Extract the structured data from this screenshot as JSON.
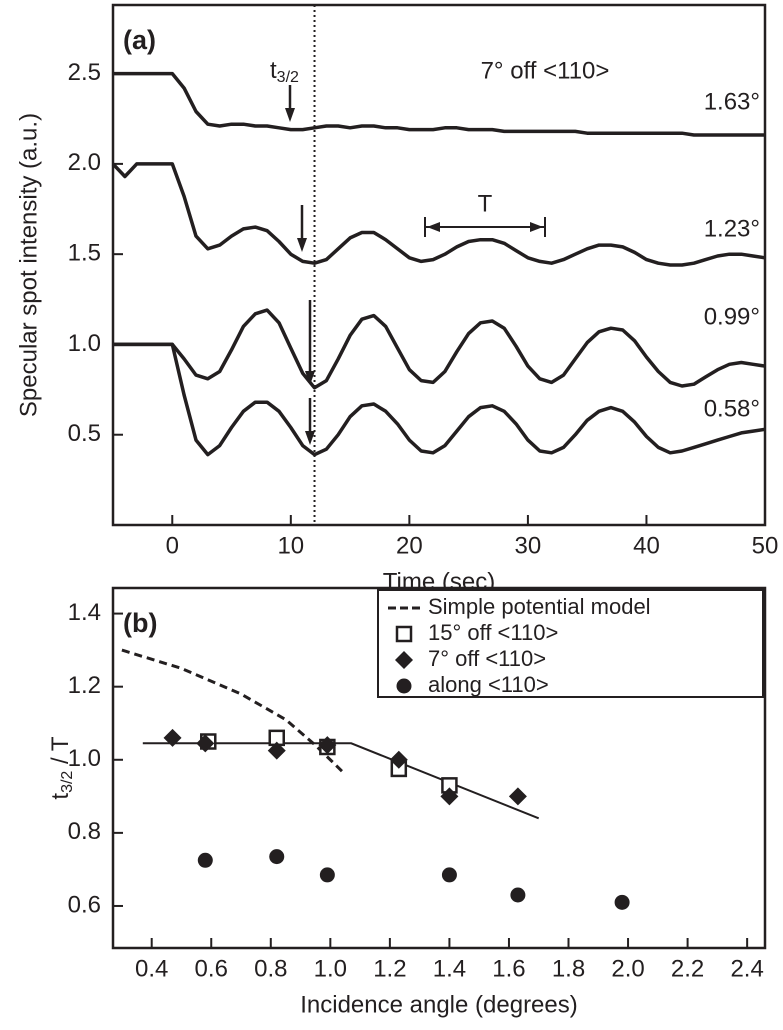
{
  "chart_data": [
    {
      "type": "line",
      "panel_label": "(a)",
      "xlabel": "Time (sec)",
      "ylabel": "Specular spot intensity (a.u.)",
      "xlim": [
        -5,
        50
      ],
      "ylim": [
        0,
        2.88
      ],
      "xticks": [
        0,
        10,
        20,
        30,
        40,
        50
      ],
      "yticks": [
        0.5,
        {
          "value": 1,
          "label": "1.0"
        },
        1.5,
        {
          "value": 2,
          "label": "2.0"
        },
        2.5
      ],
      "x": [
        -5,
        -4,
        -3,
        -2,
        -1,
        0,
        1,
        2,
        3,
        4,
        5,
        6,
        7,
        8,
        9,
        10,
        11,
        12,
        13,
        14,
        15,
        16,
        17,
        18,
        19,
        20,
        21,
        22,
        23,
        24,
        25,
        26,
        27,
        28,
        29,
        30,
        31,
        32,
        33,
        34,
        35,
        36,
        37,
        38,
        39,
        40,
        41,
        42,
        43,
        44,
        45,
        46,
        47,
        48,
        49,
        50
      ],
      "series": [
        {
          "name": "1.63°",
          "color": "#231f20",
          "values": [
            2.5,
            2.5,
            2.5,
            2.5,
            2.5,
            2.5,
            2.42,
            2.29,
            2.22,
            2.21,
            2.22,
            2.22,
            2.21,
            2.21,
            2.2,
            2.19,
            2.19,
            2.2,
            2.21,
            2.21,
            2.2,
            2.21,
            2.21,
            2.2,
            2.2,
            2.19,
            2.19,
            2.19,
            2.2,
            2.2,
            2.19,
            2.19,
            2.19,
            2.18,
            2.18,
            2.18,
            2.18,
            2.18,
            2.18,
            2.18,
            2.17,
            2.17,
            2.17,
            2.17,
            2.17,
            2.17,
            2.17,
            2.17,
            2.17,
            2.16,
            2.16,
            2.16,
            2.16,
            2.16,
            2.16,
            2.16
          ]
        },
        {
          "name": "1.23°",
          "color": "#231f20",
          "values": [
            2.0,
            1.93,
            2.0,
            2.0,
            2.0,
            2.0,
            1.82,
            1.6,
            1.53,
            1.55,
            1.6,
            1.64,
            1.65,
            1.63,
            1.57,
            1.5,
            1.46,
            1.45,
            1.47,
            1.53,
            1.59,
            1.62,
            1.62,
            1.58,
            1.53,
            1.48,
            1.46,
            1.47,
            1.5,
            1.54,
            1.57,
            1.58,
            1.58,
            1.56,
            1.52,
            1.48,
            1.46,
            1.45,
            1.47,
            1.5,
            1.53,
            1.55,
            1.55,
            1.54,
            1.51,
            1.47,
            1.45,
            1.44,
            1.44,
            1.45,
            1.47,
            1.49,
            1.5,
            1.5,
            1.49,
            1.48
          ]
        },
        {
          "name": "0.99°",
          "color": "#231f20",
          "values": [
            1.0,
            1.0,
            1.0,
            1.0,
            1.0,
            1.0,
            0.92,
            0.83,
            0.81,
            0.85,
            0.97,
            1.1,
            1.17,
            1.19,
            1.12,
            0.98,
            0.84,
            0.76,
            0.8,
            0.92,
            1.05,
            1.14,
            1.16,
            1.1,
            0.98,
            0.86,
            0.8,
            0.79,
            0.85,
            0.96,
            1.06,
            1.12,
            1.13,
            1.09,
            0.99,
            0.88,
            0.81,
            0.79,
            0.83,
            0.92,
            1.01,
            1.07,
            1.09,
            1.08,
            1.02,
            0.93,
            0.85,
            0.79,
            0.77,
            0.78,
            0.82,
            0.86,
            0.89,
            0.9,
            0.89,
            0.88
          ]
        },
        {
          "name": "0.58°",
          "color": "#231f20",
          "values": [
            1.0,
            1.0,
            1.0,
            1.0,
            1.0,
            1.0,
            0.72,
            0.47,
            0.39,
            0.44,
            0.54,
            0.63,
            0.68,
            0.68,
            0.63,
            0.54,
            0.44,
            0.39,
            0.42,
            0.5,
            0.6,
            0.66,
            0.67,
            0.63,
            0.56,
            0.47,
            0.41,
            0.4,
            0.44,
            0.52,
            0.6,
            0.65,
            0.66,
            0.63,
            0.56,
            0.47,
            0.41,
            0.4,
            0.43,
            0.5,
            0.58,
            0.63,
            0.65,
            0.63,
            0.57,
            0.49,
            0.43,
            0.4,
            0.41,
            0.43,
            0.45,
            0.47,
            0.49,
            0.51,
            0.52,
            0.53
          ]
        }
      ],
      "vline": 12,
      "annotations": [
        {
          "text": "t",
          "sub": "3/2"
        },
        {
          "text": "7° off <110>"
        },
        {
          "text": "T"
        }
      ]
    },
    {
      "type": "scatter",
      "panel_label": "(b)",
      "xlabel": "Incidence angle (degrees)",
      "ylabel": {
        "text": "t",
        "sub": "3/2",
        "rest": " / T"
      },
      "xlim": [
        0.27,
        2.46
      ],
      "ylim": [
        0.485,
        1.47
      ],
      "xticks": [
        0.4,
        0.6,
        0.8,
        {
          "value": 1,
          "label": "1.0"
        },
        1.2,
        1.4,
        1.6,
        1.8,
        {
          "value": 2,
          "label": "2.0"
        },
        2.2,
        2.4
      ],
      "yticks": [
        0.6,
        0.8,
        {
          "value": 1,
          "label": "1.0"
        },
        1.2,
        1.4
      ],
      "legend": "upper right",
      "series": [
        {
          "name": "Simple potential model",
          "color": "#231f20",
          "marker": "dashed",
          "x": [
            0.3,
            0.5,
            0.7,
            0.85,
            0.95,
            1.05
          ],
          "values": [
            1.3,
            1.25,
            1.18,
            1.11,
            1.04,
            0.96
          ]
        },
        {
          "name": "15° off <110>",
          "color": "#231f20",
          "marker": "square",
          "x": [
            0.59,
            0.82,
            0.99,
            1.23,
            1.4
          ],
          "values": [
            1.05,
            1.06,
            1.035,
            0.975,
            0.93
          ]
        },
        {
          "name": "7° off <110>",
          "color": "#231f20",
          "marker": "diamond",
          "x": [
            0.47,
            0.58,
            0.82,
            0.99,
            1.23,
            1.4,
            1.63
          ],
          "values": [
            1.06,
            1.045,
            1.025,
            1.04,
            1.0,
            0.9,
            0.9
          ]
        },
        {
          "name": "along <110>",
          "color": "#231f20",
          "marker": "circle",
          "x": [
            0.58,
            0.82,
            0.99,
            1.4,
            1.63,
            1.98
          ],
          "values": [
            0.725,
            0.735,
            0.685,
            0.685,
            0.63,
            0.61
          ]
        }
      ],
      "fit_line": {
        "color": "#231f20",
        "x": [
          0.37,
          1.07,
          1.7
        ],
        "values": [
          1.045,
          1.045,
          0.84
        ]
      }
    }
  ]
}
